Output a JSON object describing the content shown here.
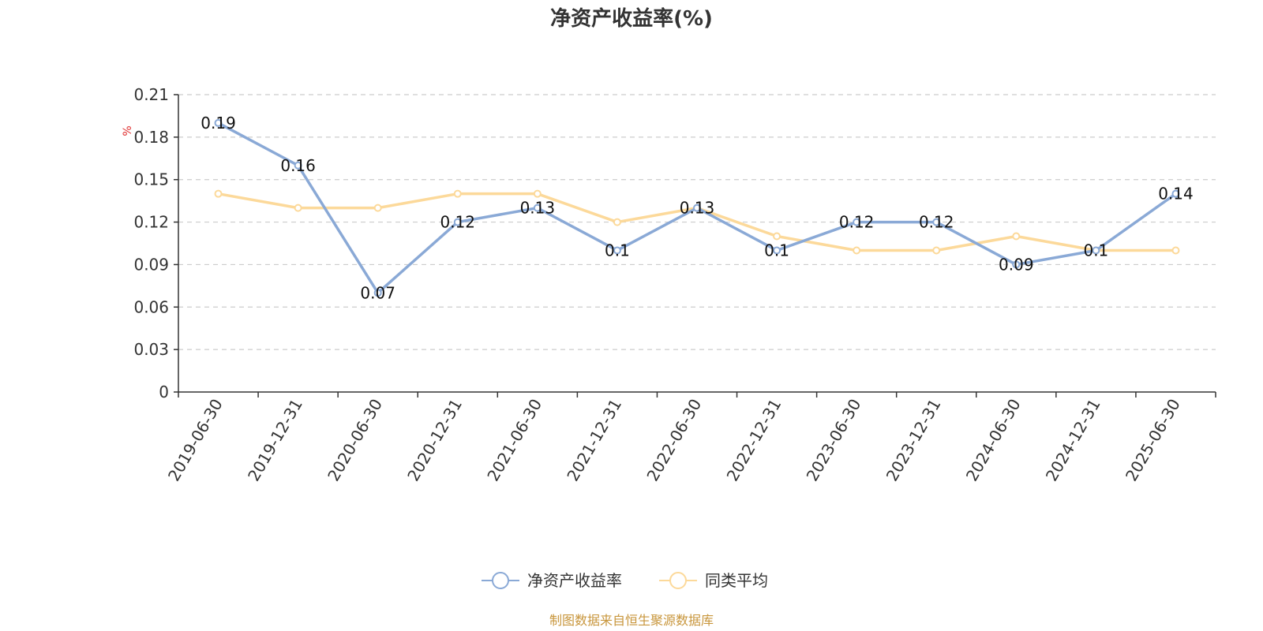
{
  "chart_data": {
    "type": "line",
    "title": "净资产收益率(%)",
    "y_unit": "%",
    "categories": [
      "2019-06-30",
      "2019-12-31",
      "2020-06-30",
      "2020-12-31",
      "2021-06-30",
      "2021-12-31",
      "2022-06-30",
      "2022-12-31",
      "2023-06-30",
      "2023-12-31",
      "2024-06-30",
      "2024-12-31",
      "2025-06-30"
    ],
    "y_ticks": [
      "0",
      "0.03",
      "0.06",
      "0.09",
      "0.12",
      "0.15",
      "0.18",
      "0.21"
    ],
    "ylim": [
      0,
      0.21
    ],
    "grid": true,
    "legend_position": "bottom",
    "series": [
      {
        "name": "净资产收益率",
        "color": "#8aa9d6",
        "values": [
          0.19,
          0.16,
          0.07,
          0.12,
          0.13,
          0.1,
          0.13,
          0.1,
          0.12,
          0.12,
          0.09,
          0.1,
          0.14
        ],
        "labels": [
          "0.19",
          "0.16",
          "0.07",
          "0.12",
          "0.13",
          "0.1",
          "0.13",
          "0.1",
          "0.12",
          "0.12",
          "0.09",
          "0.1",
          "0.14"
        ]
      },
      {
        "name": "同类平均",
        "color": "#fcd99a",
        "values": [
          0.14,
          0.13,
          0.13,
          0.14,
          0.14,
          0.12,
          0.13,
          0.11,
          0.1,
          0.1,
          0.11,
          0.1,
          0.1
        ]
      }
    ]
  },
  "source_text": "制图数据来自恒生聚源数据库",
  "colors": {
    "unit": "#e03030",
    "source": "#c8963c",
    "axis": "#333333",
    "grid": "#cccccc"
  }
}
